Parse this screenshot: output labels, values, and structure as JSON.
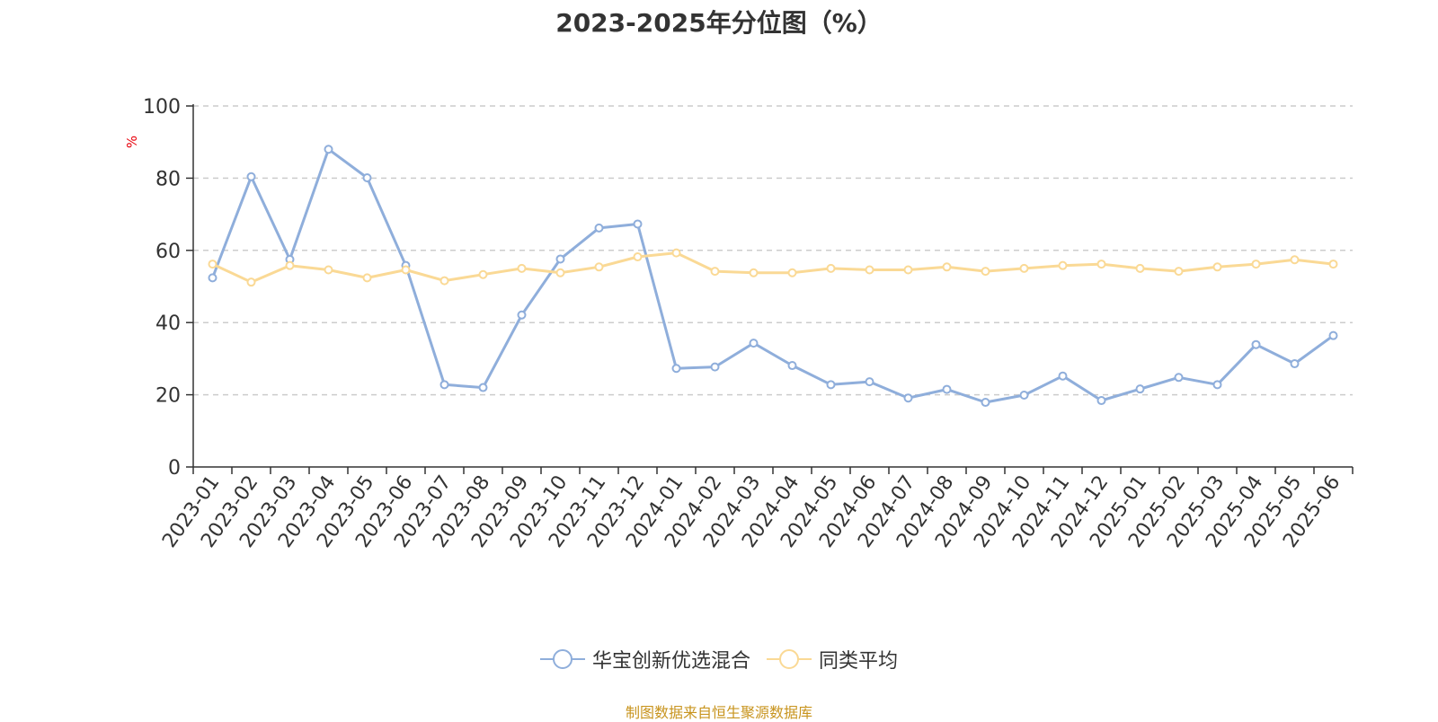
{
  "chart_data": {
    "type": "line",
    "title": "2023-2025年分位图（%）",
    "ylabel": "%",
    "xlabel": "",
    "ylim": [
      0,
      100
    ],
    "yticks": [
      "0",
      "20",
      "40",
      "60",
      "80",
      "100"
    ],
    "grid": "horizontal dashed",
    "legend_position": "bottom",
    "categories": [
      "2023-01",
      "2023-02",
      "2023-03",
      "2023-04",
      "2023-05",
      "2023-06",
      "2023-07",
      "2023-08",
      "2023-09",
      "2023-10",
      "2023-11",
      "2023-12",
      "2024-01",
      "2024-02",
      "2024-03",
      "2024-04",
      "2024-05",
      "2024-06",
      "2024-07",
      "2024-08",
      "2024-09",
      "2024-10",
      "2024-11",
      "2024-12",
      "2025-01",
      "2025-02",
      "2025-03",
      "2025-04",
      "2025-05",
      "2025-06"
    ],
    "series": [
      {
        "name": "华宝创新优选混合",
        "color": "#8faedb",
        "values": [
          52.4,
          80.4,
          57.5,
          88.0,
          80.1,
          55.8,
          22.8,
          22.0,
          42.1,
          57.6,
          66.2,
          67.3,
          27.3,
          27.7,
          34.3,
          28.1,
          22.8,
          23.6,
          19.1,
          21.5,
          17.9,
          19.9,
          25.2,
          18.4,
          21.6,
          24.8,
          22.8,
          33.9,
          28.6,
          36.4
        ]
      },
      {
        "name": "同类平均",
        "color": "#fad995",
        "values": [
          56.2,
          51.2,
          55.8,
          54.6,
          52.4,
          54.6,
          51.6,
          53.3,
          55.0,
          53.8,
          55.4,
          58.2,
          59.3,
          54.2,
          53.8,
          53.8,
          55.0,
          54.6,
          54.6,
          55.4,
          54.2,
          55.0,
          55.8,
          56.2,
          55.0,
          54.2,
          55.4,
          56.2,
          57.4,
          56.2
        ]
      }
    ]
  },
  "footer": {
    "source": "制图数据来自恒生聚源数据库"
  }
}
